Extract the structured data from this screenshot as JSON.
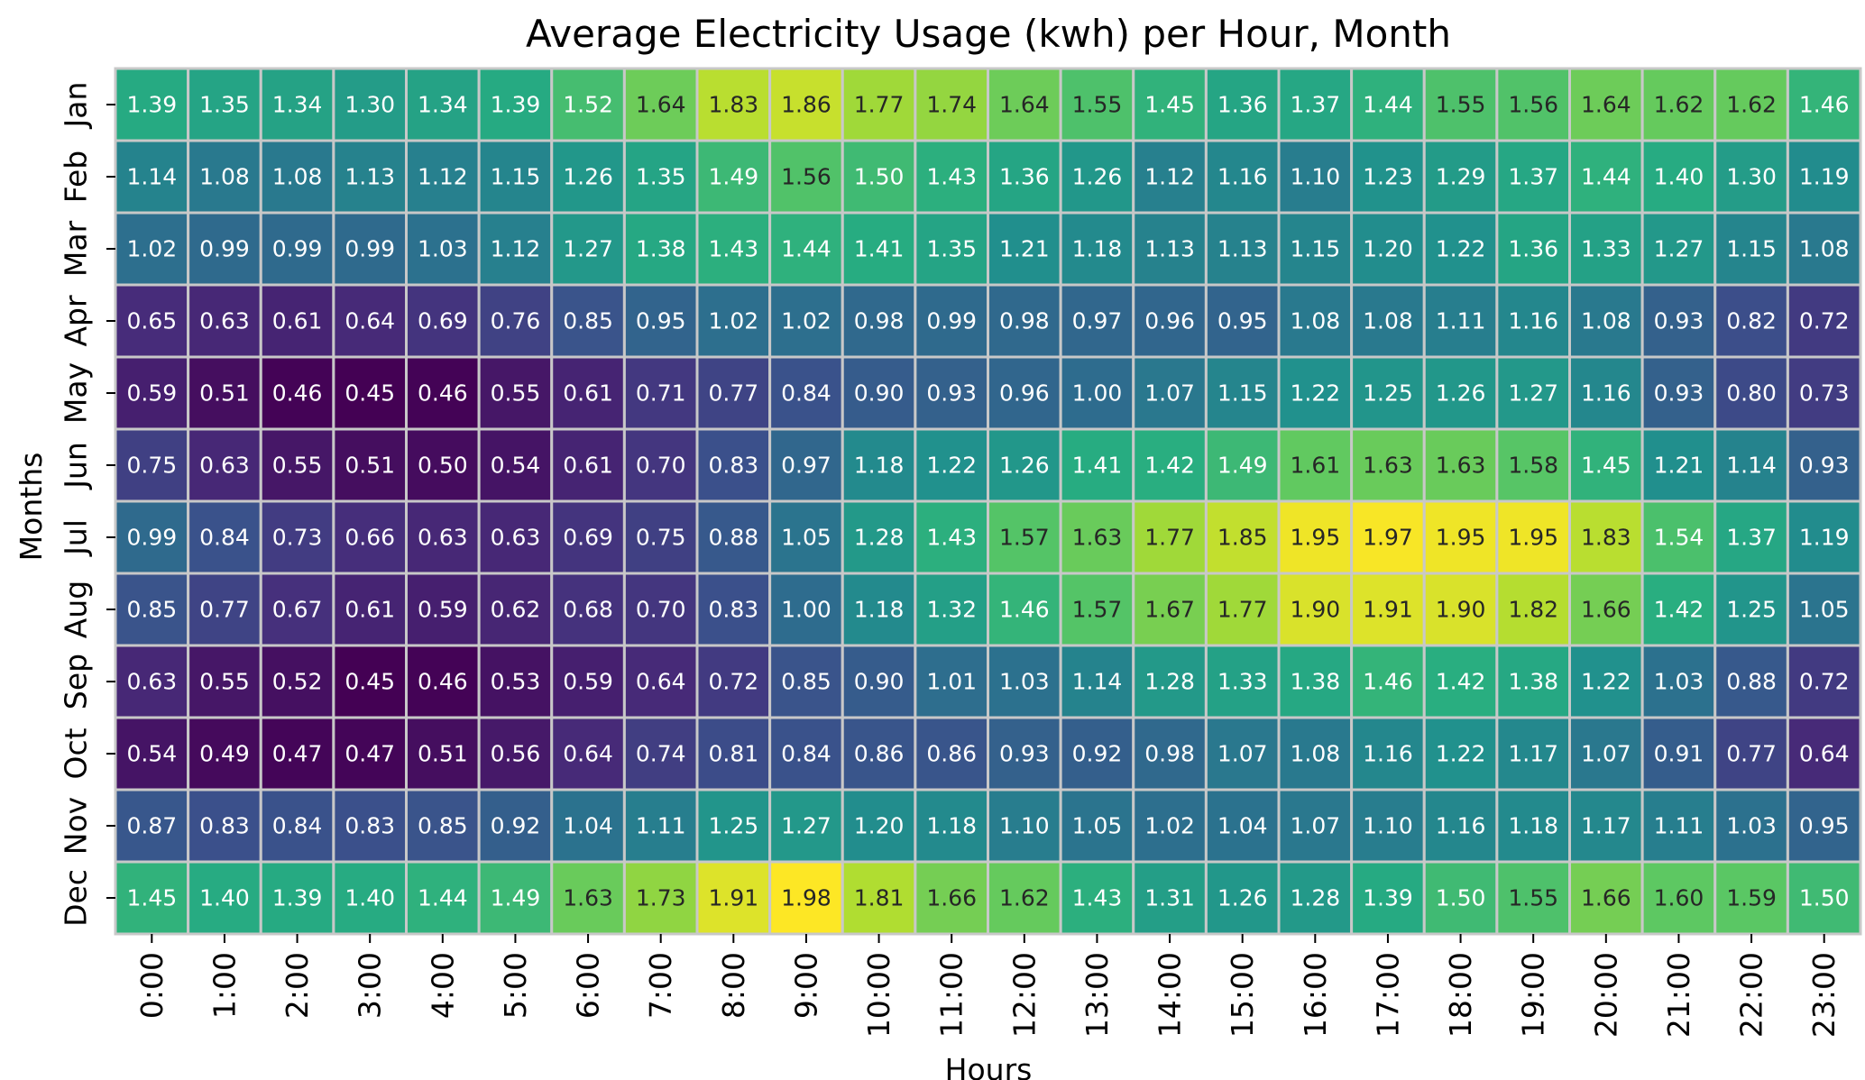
{
  "chart_data": {
    "type": "heatmap",
    "title": "Average Electricity Usage (kwh) per Hour, Month",
    "xlabel": "Hours",
    "ylabel": "Months",
    "colormap": "viridis",
    "value_range": [
      0.45,
      1.98
    ],
    "grid_line_color": "#c8c8c8",
    "x_categories": [
      "0:00",
      "1:00",
      "2:00",
      "3:00",
      "4:00",
      "5:00",
      "6:00",
      "7:00",
      "8:00",
      "9:00",
      "10:00",
      "11:00",
      "12:00",
      "13:00",
      "14:00",
      "15:00",
      "16:00",
      "17:00",
      "18:00",
      "19:00",
      "20:00",
      "21:00",
      "22:00",
      "23:00"
    ],
    "y_categories": [
      "Jan",
      "Feb",
      "Mar",
      "Apr",
      "May",
      "Jun",
      "Jul",
      "Aug",
      "Sep",
      "Oct",
      "Nov",
      "Dec"
    ],
    "values": [
      [
        "1.39",
        "1.35",
        "1.34",
        "1.30",
        "1.34",
        "1.39",
        "1.52",
        "1.64",
        "1.83",
        "1.86",
        "1.77",
        "1.74",
        "1.64",
        "1.55",
        "1.45",
        "1.36",
        "1.37",
        "1.44",
        "1.55",
        "1.56",
        "1.64",
        "1.62",
        "1.62",
        "1.46"
      ],
      [
        "1.14",
        "1.08",
        "1.08",
        "1.13",
        "1.12",
        "1.15",
        "1.26",
        "1.35",
        "1.49",
        "1.56",
        "1.50",
        "1.43",
        "1.36",
        "1.26",
        "1.12",
        "1.16",
        "1.10",
        "1.23",
        "1.29",
        "1.37",
        "1.44",
        "1.40",
        "1.30",
        "1.19"
      ],
      [
        "1.02",
        "0.99",
        "0.99",
        "0.99",
        "1.03",
        "1.12",
        "1.27",
        "1.38",
        "1.43",
        "1.44",
        "1.41",
        "1.35",
        "1.21",
        "1.18",
        "1.13",
        "1.13",
        "1.15",
        "1.20",
        "1.22",
        "1.36",
        "1.33",
        "1.27",
        "1.15",
        "1.08"
      ],
      [
        "0.65",
        "0.63",
        "0.61",
        "0.64",
        "0.69",
        "0.76",
        "0.85",
        "0.95",
        "1.02",
        "1.02",
        "0.98",
        "0.99",
        "0.98",
        "0.97",
        "0.96",
        "0.95",
        "1.08",
        "1.08",
        "1.11",
        "1.16",
        "1.08",
        "0.93",
        "0.82",
        "0.72"
      ],
      [
        "0.59",
        "0.51",
        "0.46",
        "0.45",
        "0.46",
        "0.55",
        "0.61",
        "0.71",
        "0.77",
        "0.84",
        "0.90",
        "0.93",
        "0.96",
        "1.00",
        "1.07",
        "1.15",
        "1.22",
        "1.25",
        "1.26",
        "1.27",
        "1.16",
        "0.93",
        "0.80",
        "0.73"
      ],
      [
        "0.75",
        "0.63",
        "0.55",
        "0.51",
        "0.50",
        "0.54",
        "0.61",
        "0.70",
        "0.83",
        "0.97",
        "1.18",
        "1.22",
        "1.26",
        "1.41",
        "1.42",
        "1.49",
        "1.61",
        "1.63",
        "1.63",
        "1.58",
        "1.45",
        "1.21",
        "1.14",
        "0.93"
      ],
      [
        "0.99",
        "0.84",
        "0.73",
        "0.66",
        "0.63",
        "0.63",
        "0.69",
        "0.75",
        "0.88",
        "1.05",
        "1.28",
        "1.43",
        "1.57",
        "1.63",
        "1.77",
        "1.85",
        "1.95",
        "1.97",
        "1.95",
        "1.95",
        "1.83",
        "1.54",
        "1.37",
        "1.19"
      ],
      [
        "0.85",
        "0.77",
        "0.67",
        "0.61",
        "0.59",
        "0.62",
        "0.68",
        "0.70",
        "0.83",
        "1.00",
        "1.18",
        "1.32",
        "1.46",
        "1.57",
        "1.67",
        "1.77",
        "1.90",
        "1.91",
        "1.90",
        "1.82",
        "1.66",
        "1.42",
        "1.25",
        "1.05"
      ],
      [
        "0.63",
        "0.55",
        "0.52",
        "0.45",
        "0.46",
        "0.53",
        "0.59",
        "0.64",
        "0.72",
        "0.85",
        "0.90",
        "1.01",
        "1.03",
        "1.14",
        "1.28",
        "1.33",
        "1.38",
        "1.46",
        "1.42",
        "1.38",
        "1.22",
        "1.03",
        "0.88",
        "0.72"
      ],
      [
        "0.54",
        "0.49",
        "0.47",
        "0.47",
        "0.51",
        "0.56",
        "0.64",
        "0.74",
        "0.81",
        "0.84",
        "0.86",
        "0.86",
        "0.93",
        "0.92",
        "0.98",
        "1.07",
        "1.08",
        "1.16",
        "1.22",
        "1.17",
        "1.07",
        "0.91",
        "0.77",
        "0.64"
      ],
      [
        "0.87",
        "0.83",
        "0.84",
        "0.83",
        "0.85",
        "0.92",
        "1.04",
        "1.11",
        "1.25",
        "1.27",
        "1.20",
        "1.18",
        "1.10",
        "1.05",
        "1.02",
        "1.04",
        "1.07",
        "1.10",
        "1.16",
        "1.18",
        "1.17",
        "1.11",
        "1.03",
        "0.95"
      ],
      [
        "1.45",
        "1.40",
        "1.39",
        "1.40",
        "1.44",
        "1.49",
        "1.63",
        "1.73",
        "1.91",
        "1.98",
        "1.81",
        "1.66",
        "1.62",
        "1.43",
        "1.31",
        "1.26",
        "1.28",
        "1.39",
        "1.50",
        "1.55",
        "1.66",
        "1.60",
        "1.59",
        "1.50"
      ]
    ]
  }
}
